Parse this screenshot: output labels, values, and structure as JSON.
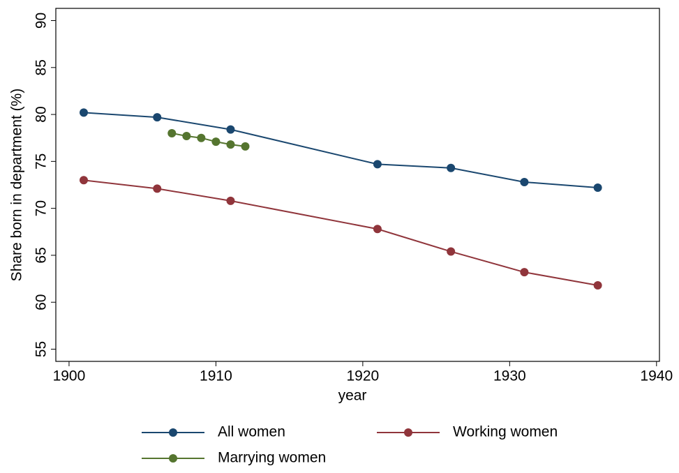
{
  "chart_data": {
    "type": "line",
    "xlabel": "year",
    "ylabel": "Share born in department (%)",
    "xlim": [
      1899.1,
      1940.2
    ],
    "xticks": [
      1900,
      1910,
      1920,
      1930,
      1940
    ],
    "ylim": [
      53.7,
      91.3
    ],
    "yticks": [
      55,
      60,
      65,
      70,
      75,
      80,
      85,
      90
    ],
    "grid": false,
    "legend": "bottom",
    "series": [
      {
        "name": "All women",
        "color": "#1a476f",
        "x": [
          1901,
          1906,
          1911,
          1921,
          1926,
          1931,
          1936
        ],
        "values": [
          80.2,
          79.7,
          78.4,
          74.7,
          74.3,
          72.8,
          72.2
        ]
      },
      {
        "name": "Working women",
        "color": "#90353b",
        "x": [
          1901,
          1906,
          1911,
          1921,
          1926,
          1931,
          1936
        ],
        "values": [
          73.0,
          72.1,
          70.8,
          67.8,
          65.4,
          63.2,
          61.8
        ]
      },
      {
        "name": "Marrying women",
        "color": "#55752f",
        "x": [
          1907,
          1908,
          1909,
          1910,
          1911,
          1912
        ],
        "values": [
          78.0,
          77.7,
          77.5,
          77.1,
          76.8,
          76.6
        ]
      }
    ]
  }
}
